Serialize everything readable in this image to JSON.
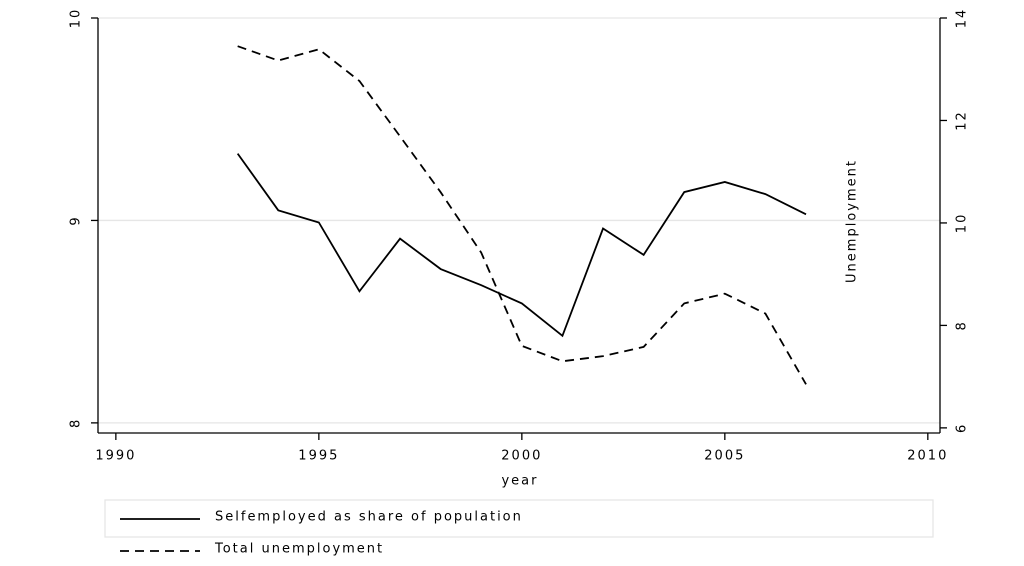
{
  "chart_data": {
    "type": "line",
    "x_label": "year",
    "y2_label": "Unemployment",
    "x": [
      1993,
      1994,
      1995,
      1996,
      1997,
      1998,
      1999,
      2000,
      2001,
      2002,
      2003,
      2004,
      2005,
      2006,
      2007
    ],
    "xlim": [
      1989.56,
      2010.3
    ],
    "xticks": [
      1990,
      1995,
      2000,
      2005,
      2010
    ],
    "ylim": [
      7.95,
      10
    ],
    "yticks": [
      8,
      9,
      10
    ],
    "y2lim": [
      5.9,
      14
    ],
    "y2ticks": [
      6,
      8,
      10,
      12,
      14
    ],
    "grid": true,
    "legend": "bottom",
    "series": [
      {
        "name": "Selfemployed as share of population",
        "color": "#000000",
        "dash": "solid",
        "values": [
          9.33,
          9.05,
          8.99,
          8.65,
          8.91,
          8.76,
          8.68,
          8.59,
          8.43,
          8.96,
          8.83,
          9.14,
          9.19,
          9.13,
          9.03
        ]
      },
      {
        "name": "Total unemployment",
        "color": "#000000",
        "dash": "dashed",
        "axis": "y2",
        "values": [
          13.45,
          13.17,
          13.39,
          12.77,
          11.69,
          10.6,
          9.42,
          7.6,
          7.3,
          7.4,
          7.58,
          8.43,
          8.62,
          8.23,
          6.85
        ]
      }
    ]
  }
}
